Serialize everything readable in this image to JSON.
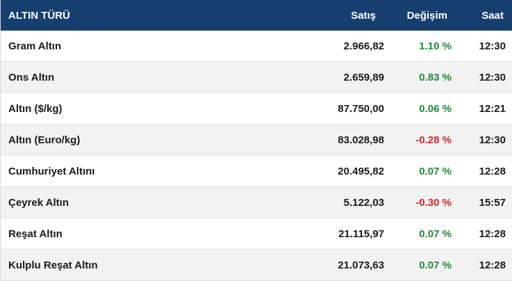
{
  "header": {
    "name_label": "ALTIN TÜRÜ",
    "sell_label": "Satış",
    "change_label": "Değişim",
    "time_label": "Saat"
  },
  "rows": [
    {
      "name": "Gram Altın",
      "sell": "2.966,82",
      "change": "1.10 %",
      "direction": "up",
      "time": "12:30"
    },
    {
      "name": "Ons Altın",
      "sell": "2.659,89",
      "change": "0.83 %",
      "direction": "up",
      "time": "12:30"
    },
    {
      "name": "Altın ($/kg)",
      "sell": "87.750,00",
      "change": "0.06 %",
      "direction": "up",
      "time": "12:21"
    },
    {
      "name": "Altın (Euro/kg)",
      "sell": "83.028,98",
      "change": "-0.28 %",
      "direction": "down",
      "time": "12:30"
    },
    {
      "name": "Cumhuriyet Altını",
      "sell": "20.495,82",
      "change": "0.07 %",
      "direction": "up",
      "time": "12:28"
    },
    {
      "name": "Çeyrek Altın",
      "sell": "5.122,03",
      "change": "-0.30 %",
      "direction": "down",
      "time": "15:57"
    },
    {
      "name": "Reşat Altın",
      "sell": "21.115,97",
      "change": "0.07 %",
      "direction": "up",
      "time": "12:28"
    },
    {
      "name": "Kulplu Reşat Altın",
      "sell": "21.073,63",
      "change": "0.07 %",
      "direction": "up",
      "time": "12:28"
    }
  ],
  "colors": {
    "header_bg": "#163e6f",
    "positive": "#1e8a3c",
    "negative": "#d0262b",
    "stripe": "#f2f2f2"
  }
}
